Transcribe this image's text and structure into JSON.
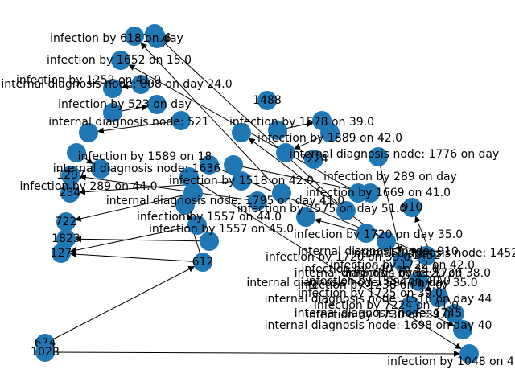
{
  "colors": {
    "node_fill": "#1f78b4",
    "edge": "#000000",
    "background": "#ffffff"
  },
  "nodes": [
    {
      "id": "n_674",
      "label": "674"
    },
    {
      "id": "n_1028",
      "label": "1028"
    },
    {
      "id": "n_612",
      "label": "612"
    },
    {
      "id": "n_1823",
      "label": "1823"
    },
    {
      "id": "n_127",
      "label": "127"
    },
    {
      "id": "n_722",
      "label": "722"
    },
    {
      "id": "n_234",
      "label": "234"
    },
    {
      "id": "n_1297",
      "label": "1297"
    },
    {
      "id": "n_1488",
      "label": "1488"
    },
    {
      "id": "n_7224",
      "label": "7224"
    },
    {
      "id": "n_1636",
      "label": "1636"
    },
    {
      "id": "n_910",
      "label": "910"
    },
    {
      "id": "n_1452",
      "label": "1452"
    },
    {
      "id": "n_a1",
      "label": ""
    },
    {
      "id": "n_a2",
      "label": ""
    },
    {
      "id": "n_a3",
      "label": ""
    },
    {
      "id": "n_a4",
      "label": ""
    },
    {
      "id": "n_a5",
      "label": ""
    },
    {
      "id": "n_a6",
      "label": ""
    },
    {
      "id": "n_a7",
      "label": ""
    },
    {
      "id": "n_a8",
      "label": ""
    },
    {
      "id": "n_a9",
      "label": ""
    },
    {
      "id": "n_a10",
      "label": ""
    },
    {
      "id": "n_a11",
      "label": ""
    },
    {
      "id": "n_a12",
      "label": ""
    },
    {
      "id": "n_a13",
      "label": ""
    },
    {
      "id": "n_a14",
      "label": ""
    },
    {
      "id": "n_a15",
      "label": ""
    },
    {
      "id": "n_a16",
      "label": ""
    },
    {
      "id": "n_a17",
      "label": ""
    },
    {
      "id": "n_a18",
      "label": ""
    },
    {
      "id": "n_a19",
      "label": ""
    },
    {
      "id": "n_a20",
      "label": ""
    },
    {
      "id": "n_a21",
      "label": ""
    },
    {
      "id": "n_a22",
      "label": ""
    },
    {
      "id": "n_a23",
      "label": ""
    },
    {
      "id": "n_a24",
      "label": ""
    },
    {
      "id": "n_a25",
      "label": ""
    },
    {
      "id": "n_a26",
      "label": ""
    },
    {
      "id": "n_a27",
      "label": ""
    },
    {
      "id": "n_a28",
      "label": ""
    },
    {
      "id": "n_a29",
      "label": ""
    },
    {
      "id": "n_a30",
      "label": ""
    },
    {
      "id": "n_a31",
      "label": ""
    },
    {
      "id": "n_a32",
      "label": ""
    },
    {
      "id": "n_a33",
      "label": ""
    },
    {
      "id": "n_a34",
      "label": ""
    },
    {
      "id": "n_a35",
      "label": ""
    },
    {
      "id": "n_a36",
      "label": ""
    },
    {
      "id": "n_a37",
      "label": ""
    },
    {
      "id": "n_a38",
      "label": ""
    },
    {
      "id": "n_a39",
      "label": ""
    },
    {
      "id": "n_a40",
      "label": ""
    }
  ],
  "edges": [
    {
      "from": "n_674",
      "to": "n_612",
      "label": ""
    },
    {
      "from": "n_1028",
      "to": "n_a40",
      "label": "infection by 618 on day"
    },
    {
      "from": "n_612",
      "to": "n_a20",
      "label": "infection by 1652 on 15.0"
    },
    {
      "from": "n_612",
      "to": "n_127",
      "label": ""
    },
    {
      "from": "n_a21",
      "to": "n_127",
      "label": "internal diagnosis node: 808 on day 24.0"
    },
    {
      "from": "n_a22",
      "to": "n_1823",
      "label": "infection by 523 on day"
    },
    {
      "from": "n_a23",
      "to": "n_722",
      "label": "internal diagnosis node: 521"
    },
    {
      "from": "n_a24",
      "to": "n_234",
      "label": ""
    },
    {
      "from": "n_a25",
      "to": "n_1297",
      "label": "infection by 1589 on 18"
    },
    {
      "from": "n_a26",
      "to": "n_a1",
      "label": "internal diagnosis node: 1636"
    },
    {
      "from": "n_a27",
      "to": "n_a2",
      "label": "infection by 1518 on 42.0"
    },
    {
      "from": "n_a28",
      "to": "n_a3",
      "label": "internal diagnosis node: 1795 on day 41.0"
    },
    {
      "from": "n_a4",
      "to": "n_a5",
      "label": "infection by 1557 on 44.0"
    },
    {
      "from": "n_a6",
      "to": "n_a7",
      "label": "infection by 1557 on 45.0"
    },
    {
      "from": "n_a8",
      "to": "n_a9",
      "label": "infection by 289 on 44.0"
    },
    {
      "from": "n_a10",
      "to": "n_a11",
      "label": "infection by 1578 on 39.0"
    },
    {
      "from": "n_a12",
      "to": "n_a13",
      "label": "infection by 1889 on 42.0"
    },
    {
      "from": "n_a29",
      "to": "n_a14",
      "label": "internal diagnosis node: 1776 on day"
    },
    {
      "from": "n_a15",
      "to": "n_a16",
      "label": "infection by 289 on day"
    },
    {
      "from": "n_a17",
      "to": "n_a18",
      "label": "infection by 1669 on 41.0"
    },
    {
      "from": "n_a19",
      "to": "n_a30",
      "label": "infection by 1575 on day 51.0"
    },
    {
      "from": "n_a31",
      "to": "n_a32",
      "label": "infection by 1720 on day 35.0"
    },
    {
      "from": "n_a33",
      "to": "n_910",
      "label": "internal diagnosis node: 910"
    },
    {
      "from": "n_a34",
      "to": "n_a35",
      "label": "infection by 940 on 39.0"
    },
    {
      "from": "n_a36",
      "to": "n_a37",
      "label": "internal diagnosis node: 594 on day 35.0"
    },
    {
      "from": "n_a38",
      "to": "n_1452",
      "label": "internal diagnosis node: 1516 on day 44"
    },
    {
      "from": "n_a39",
      "to": "n_a40",
      "label": "internal diagnosis node: 1698 on day 40"
    }
  ],
  "extra_labels": [
    "infection by 1236 on 41.0",
    "infection by 1557 on 40.0",
    "infection by 7224 on 41.0",
    "infection by 1730 on 39.0",
    "infection by 1720 on 39.0",
    "internal diagnosis node: 1452",
    "infection by 1722 on 42.0",
    "infection by 1120 on 38.0",
    "infection by 1048 on 4",
    "internal diagnosis node: 1745",
    "infection by 1725 on 39.0",
    "internal diagnosis node: 1729",
    "infection by 1252 on 41.0"
  ]
}
